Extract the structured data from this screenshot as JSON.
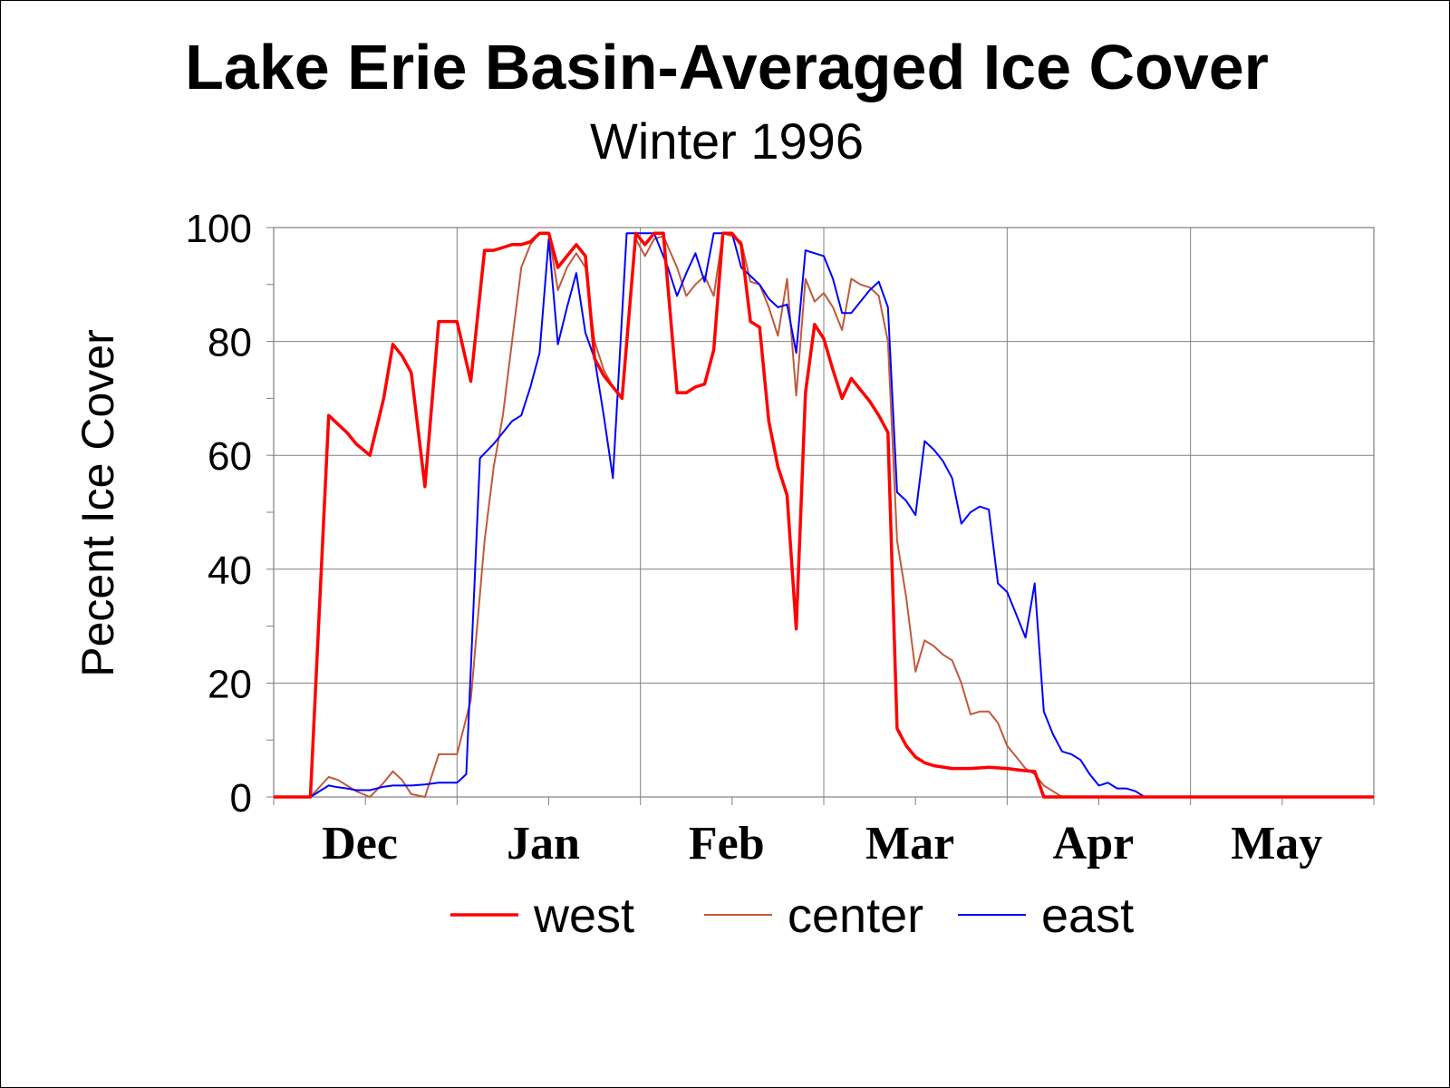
{
  "chart_data": {
    "type": "line",
    "title": "Lake Erie Basin-Averaged Ice Cover",
    "subtitle": "Winter 1996",
    "ylabel": "Pecent Ice Cover",
    "xlabel": "",
    "ylim": [
      0,
      100
    ],
    "yticks": [
      "0",
      "20",
      "40",
      "60",
      "80",
      "100"
    ],
    "month_labels": [
      "Dec",
      "Jan",
      "Feb",
      "Mar",
      "Apr",
      "May"
    ],
    "xlim": [
      0,
      120
    ],
    "grid": true,
    "legend_position": "bottom",
    "series": [
      {
        "name": "west",
        "color": "#ff0000",
        "points": [
          [
            0,
            0
          ],
          [
            4,
            0
          ],
          [
            6,
            67
          ],
          [
            7,
            65.5
          ],
          [
            8,
            64
          ],
          [
            9,
            62
          ],
          [
            10.5,
            60
          ],
          [
            12,
            70
          ],
          [
            13,
            79.5
          ],
          [
            14,
            77.5
          ],
          [
            15,
            74.5
          ],
          [
            16.5,
            54.5
          ],
          [
            18,
            83.5
          ],
          [
            19,
            83.5
          ],
          [
            20,
            83.5
          ],
          [
            21.5,
            73
          ],
          [
            23,
            96
          ],
          [
            24,
            96
          ],
          [
            25,
            96.5
          ],
          [
            26,
            97
          ],
          [
            27,
            97
          ],
          [
            28,
            97.5
          ],
          [
            29,
            99
          ],
          [
            30,
            99
          ],
          [
            31,
            93
          ],
          [
            32,
            95
          ],
          [
            33,
            97
          ],
          [
            34,
            95
          ],
          [
            35,
            77
          ],
          [
            36,
            74
          ],
          [
            37,
            72
          ],
          [
            38,
            70
          ],
          [
            39.5,
            99
          ],
          [
            40.5,
            97
          ],
          [
            41.5,
            99
          ],
          [
            42.5,
            99
          ],
          [
            44,
            71
          ],
          [
            45,
            71
          ],
          [
            46,
            72
          ],
          [
            47,
            72.5
          ],
          [
            48,
            78.5
          ],
          [
            49,
            99
          ],
          [
            50,
            99
          ],
          [
            51,
            97
          ],
          [
            52,
            83.5
          ],
          [
            53,
            82.5
          ],
          [
            54,
            66
          ],
          [
            55,
            58
          ],
          [
            56,
            53
          ],
          [
            57,
            29.5
          ],
          [
            58,
            71
          ],
          [
            59,
            83
          ],
          [
            60,
            80.5
          ],
          [
            61,
            75
          ],
          [
            62,
            70
          ],
          [
            63,
            73.5
          ],
          [
            64,
            71.5
          ],
          [
            65,
            69.5
          ],
          [
            66,
            67
          ],
          [
            67,
            64
          ],
          [
            68,
            12
          ],
          [
            69,
            9
          ],
          [
            70,
            7
          ],
          [
            71,
            6
          ],
          [
            72,
            5.5
          ],
          [
            74,
            5
          ],
          [
            76,
            5
          ],
          [
            78,
            5.2
          ],
          [
            80,
            5
          ],
          [
            82,
            4.6
          ],
          [
            83,
            4.5
          ],
          [
            84,
            0
          ],
          [
            85,
            0
          ],
          [
            120,
            0
          ]
        ]
      },
      {
        "name": "center",
        "color": "#c05a3c",
        "points": [
          [
            0,
            0
          ],
          [
            4,
            0
          ],
          [
            6,
            3.5
          ],
          [
            7,
            3
          ],
          [
            8,
            2
          ],
          [
            9,
            1
          ],
          [
            10.5,
            0
          ],
          [
            12,
            2.5
          ],
          [
            13,
            4.5
          ],
          [
            14,
            3
          ],
          [
            15,
            0.5
          ],
          [
            16.5,
            0
          ],
          [
            18,
            7.5
          ],
          [
            20,
            7.5
          ],
          [
            21.5,
            17
          ],
          [
            23,
            45
          ],
          [
            24,
            58
          ],
          [
            25,
            67
          ],
          [
            26,
            80
          ],
          [
            27,
            93
          ],
          [
            28,
            97
          ],
          [
            29,
            99
          ],
          [
            30,
            99
          ],
          [
            31,
            89
          ],
          [
            32,
            93
          ],
          [
            33,
            95.5
          ],
          [
            34,
            93
          ],
          [
            35,
            80
          ],
          [
            36,
            75
          ],
          [
            37,
            72
          ],
          [
            38,
            70
          ],
          [
            39.5,
            98
          ],
          [
            40.5,
            95
          ],
          [
            41.5,
            98
          ],
          [
            42.5,
            98.5
          ],
          [
            44,
            93
          ],
          [
            45,
            88
          ],
          [
            46,
            90
          ],
          [
            47,
            91.5
          ],
          [
            48,
            88
          ],
          [
            49,
            99
          ],
          [
            50,
            98.5
          ],
          [
            51,
            97.5
          ],
          [
            52,
            90.5
          ],
          [
            53,
            90
          ],
          [
            54,
            86
          ],
          [
            55,
            81
          ],
          [
            56,
            91
          ],
          [
            57,
            70.5
          ],
          [
            58,
            91
          ],
          [
            59,
            87
          ],
          [
            60,
            88.5
          ],
          [
            61,
            86
          ],
          [
            62,
            82
          ],
          [
            63,
            91
          ],
          [
            64,
            90
          ],
          [
            65,
            89.5
          ],
          [
            66,
            88
          ],
          [
            67,
            80
          ],
          [
            68,
            45
          ],
          [
            69,
            35
          ],
          [
            70,
            22
          ],
          [
            71,
            27.5
          ],
          [
            72,
            26.5
          ],
          [
            73,
            25
          ],
          [
            74,
            24
          ],
          [
            75,
            20
          ],
          [
            76,
            14.5
          ],
          [
            77,
            15
          ],
          [
            78,
            15
          ],
          [
            79,
            13
          ],
          [
            80,
            9
          ],
          [
            81,
            7
          ],
          [
            82,
            5
          ],
          [
            83,
            4
          ],
          [
            84,
            2
          ],
          [
            85,
            1
          ],
          [
            86,
            0
          ],
          [
            120,
            0
          ]
        ]
      },
      {
        "name": "east",
        "color": "#0000ff",
        "points": [
          [
            0,
            0
          ],
          [
            4,
            0
          ],
          [
            6,
            2
          ],
          [
            7,
            1.7
          ],
          [
            8,
            1.5
          ],
          [
            9,
            1.2
          ],
          [
            10.5,
            1.2
          ],
          [
            12,
            1.8
          ],
          [
            13,
            2
          ],
          [
            14,
            2
          ],
          [
            15,
            2
          ],
          [
            16.5,
            2.2
          ],
          [
            18,
            2.5
          ],
          [
            19,
            2.5
          ],
          [
            20,
            2.5
          ],
          [
            21,
            4
          ],
          [
            22.5,
            59.5
          ],
          [
            24,
            62
          ],
          [
            25,
            64
          ],
          [
            26,
            66
          ],
          [
            27,
            67
          ],
          [
            28,
            72
          ],
          [
            29,
            78
          ],
          [
            30,
            98
          ],
          [
            31,
            79.5
          ],
          [
            32,
            86
          ],
          [
            33,
            92
          ],
          [
            34,
            81.5
          ],
          [
            35,
            77
          ],
          [
            36,
            67
          ],
          [
            37,
            56
          ],
          [
            38.5,
            99
          ],
          [
            39.5,
            99
          ],
          [
            40.5,
            99
          ],
          [
            41.5,
            99
          ],
          [
            43,
            93
          ],
          [
            44,
            88
          ],
          [
            45,
            92
          ],
          [
            46,
            95.5
          ],
          [
            47,
            90.5
          ],
          [
            48,
            99
          ],
          [
            49,
            99
          ],
          [
            50,
            99
          ],
          [
            51,
            93
          ],
          [
            52,
            91.5
          ],
          [
            53,
            90
          ],
          [
            54,
            87.5
          ],
          [
            55,
            86
          ],
          [
            56,
            86.5
          ],
          [
            57,
            78
          ],
          [
            58,
            96
          ],
          [
            59,
            95.5
          ],
          [
            60,
            95
          ],
          [
            61,
            91
          ],
          [
            62,
            85
          ],
          [
            63,
            85
          ],
          [
            64,
            87
          ],
          [
            65,
            89
          ],
          [
            66,
            90.5
          ],
          [
            67,
            86
          ],
          [
            68,
            53.5
          ],
          [
            69,
            52
          ],
          [
            70,
            49.5
          ],
          [
            71,
            62.5
          ],
          [
            72,
            61
          ],
          [
            73,
            59
          ],
          [
            74,
            56
          ],
          [
            75,
            48
          ],
          [
            76,
            50
          ],
          [
            77,
            51
          ],
          [
            78,
            50.5
          ],
          [
            79,
            37.5
          ],
          [
            80,
            36
          ],
          [
            81,
            32
          ],
          [
            82,
            28
          ],
          [
            83,
            37.5
          ],
          [
            84,
            15
          ],
          [
            85,
            11
          ],
          [
            86,
            8
          ],
          [
            87,
            7.5
          ],
          [
            88,
            6.5
          ],
          [
            89,
            4
          ],
          [
            90,
            2
          ],
          [
            91,
            2.5
          ],
          [
            92,
            1.5
          ],
          [
            93,
            1.5
          ],
          [
            94,
            1
          ],
          [
            95,
            0
          ],
          [
            120,
            0
          ]
        ]
      }
    ]
  }
}
